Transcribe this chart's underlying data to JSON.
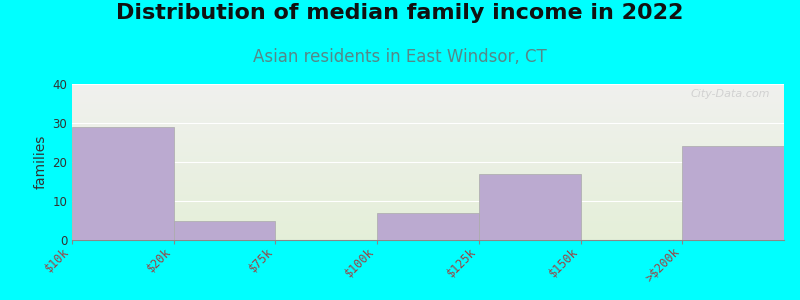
{
  "title": "Distribution of median family income in 2022",
  "subtitle": "Asian residents in East Windsor, CT",
  "ylabel": "families",
  "background_color": "#00FFFF",
  "plot_bg_top": "#f0f0ee",
  "plot_bg_bottom": "#e4efd8",
  "bar_color": "#bbaacccc",
  "bar_color_hex": "#bbaad0",
  "bar_edge_color": "#aaaaaa",
  "categories": [
    "$10k",
    "$20k",
    "$75k",
    "$100k",
    "$125k",
    "$150k",
    ">$200k"
  ],
  "values": [
    29,
    5,
    0,
    7,
    17,
    0,
    24
  ],
  "ylim": [
    0,
    40
  ],
  "yticks": [
    0,
    10,
    20,
    30,
    40
  ],
  "title_fontsize": 16,
  "subtitle_fontsize": 12,
  "ylabel_fontsize": 10,
  "tick_fontsize": 8.5,
  "watermark": "City-Data.com"
}
